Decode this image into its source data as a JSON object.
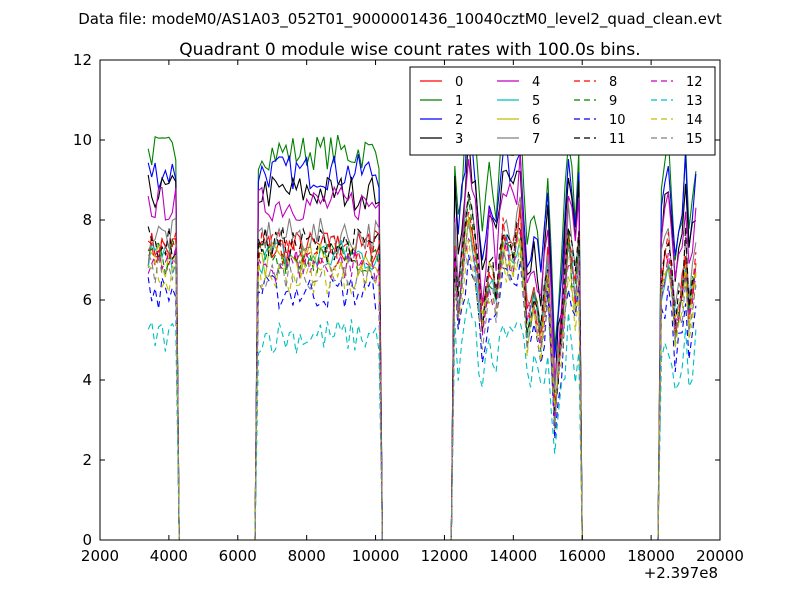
{
  "suptitle": "Data file: modeM0/AS1A03_052T01_9000001436_10040cztM0_level2_quad_clean.evt",
  "chart_data": {
    "type": "line",
    "title": "Quadrant 0 module wise count rates with 100.0s bins.",
    "xlabel": "",
    "ylabel": "",
    "x_offset_label": "+2.397e8",
    "xlim": [
      2000,
      20000
    ],
    "ylim": [
      0,
      12
    ],
    "x_ticks": [
      "2000",
      "4000",
      "6000",
      "8000",
      "10000",
      "12000",
      "14000",
      "16000",
      "18000",
      "20000"
    ],
    "y_ticks": [
      "0",
      "2",
      "4",
      "6",
      "8",
      "10",
      "12"
    ],
    "x_tick_values": [
      2000,
      4000,
      6000,
      8000,
      10000,
      12000,
      14000,
      16000,
      18000,
      20000
    ],
    "y_tick_values": [
      0,
      2,
      4,
      6,
      8,
      10,
      12
    ],
    "grid": false,
    "legend_position": "top-right",
    "legend_columns": 4,
    "segments": [
      {
        "start": 3400,
        "end": 4200,
        "drop_to": 4300
      },
      {
        "start": 6600,
        "end": 10100,
        "rise_from": 6450,
        "drop_to": 10300
      },
      {
        "start": 12300,
        "end": 15900,
        "rise_from": 12200,
        "drop_to": 16100
      },
      {
        "start": 18300,
        "end": 19300,
        "rise_from": 18200
      }
    ],
    "x_extent": [
      3400,
      19300
    ],
    "series": [
      {
        "name": "0",
        "color": "#ff0000",
        "dash": "solid",
        "level": 7.3
      },
      {
        "name": "1",
        "color": "#008000",
        "dash": "solid",
        "level": 9.7
      },
      {
        "name": "2",
        "color": "#0000ff",
        "dash": "solid",
        "level": 9.2
      },
      {
        "name": "3",
        "color": "#000000",
        "dash": "solid",
        "level": 8.7
      },
      {
        "name": "4",
        "color": "#bf00bf",
        "dash": "solid",
        "level": 8.4
      },
      {
        "name": "5",
        "color": "#00bfbf",
        "dash": "solid",
        "level": 7.1
      },
      {
        "name": "6",
        "color": "#bfbf00",
        "dash": "solid",
        "level": 7.0
      },
      {
        "name": "7",
        "color": "#808080",
        "dash": "solid",
        "level": 7.6
      },
      {
        "name": "8",
        "color": "#ff0000",
        "dash": "dashed",
        "level": 7.3
      },
      {
        "name": "9",
        "color": "#008000",
        "dash": "dashed",
        "level": 7.1
      },
      {
        "name": "10",
        "color": "#0000ff",
        "dash": "dashed",
        "level": 6.2
      },
      {
        "name": "11",
        "color": "#000000",
        "dash": "dashed",
        "level": 7.4
      },
      {
        "name": "12",
        "color": "#bf00bf",
        "dash": "dashed",
        "level": 6.9
      },
      {
        "name": "13",
        "color": "#00bfbf",
        "dash": "dashed",
        "level": 5.1
      },
      {
        "name": "14",
        "color": "#bfbf00",
        "dash": "dashed",
        "level": 6.6
      },
      {
        "name": "15",
        "color": "#808080",
        "dash": "dashed",
        "level": 6.7
      }
    ]
  }
}
